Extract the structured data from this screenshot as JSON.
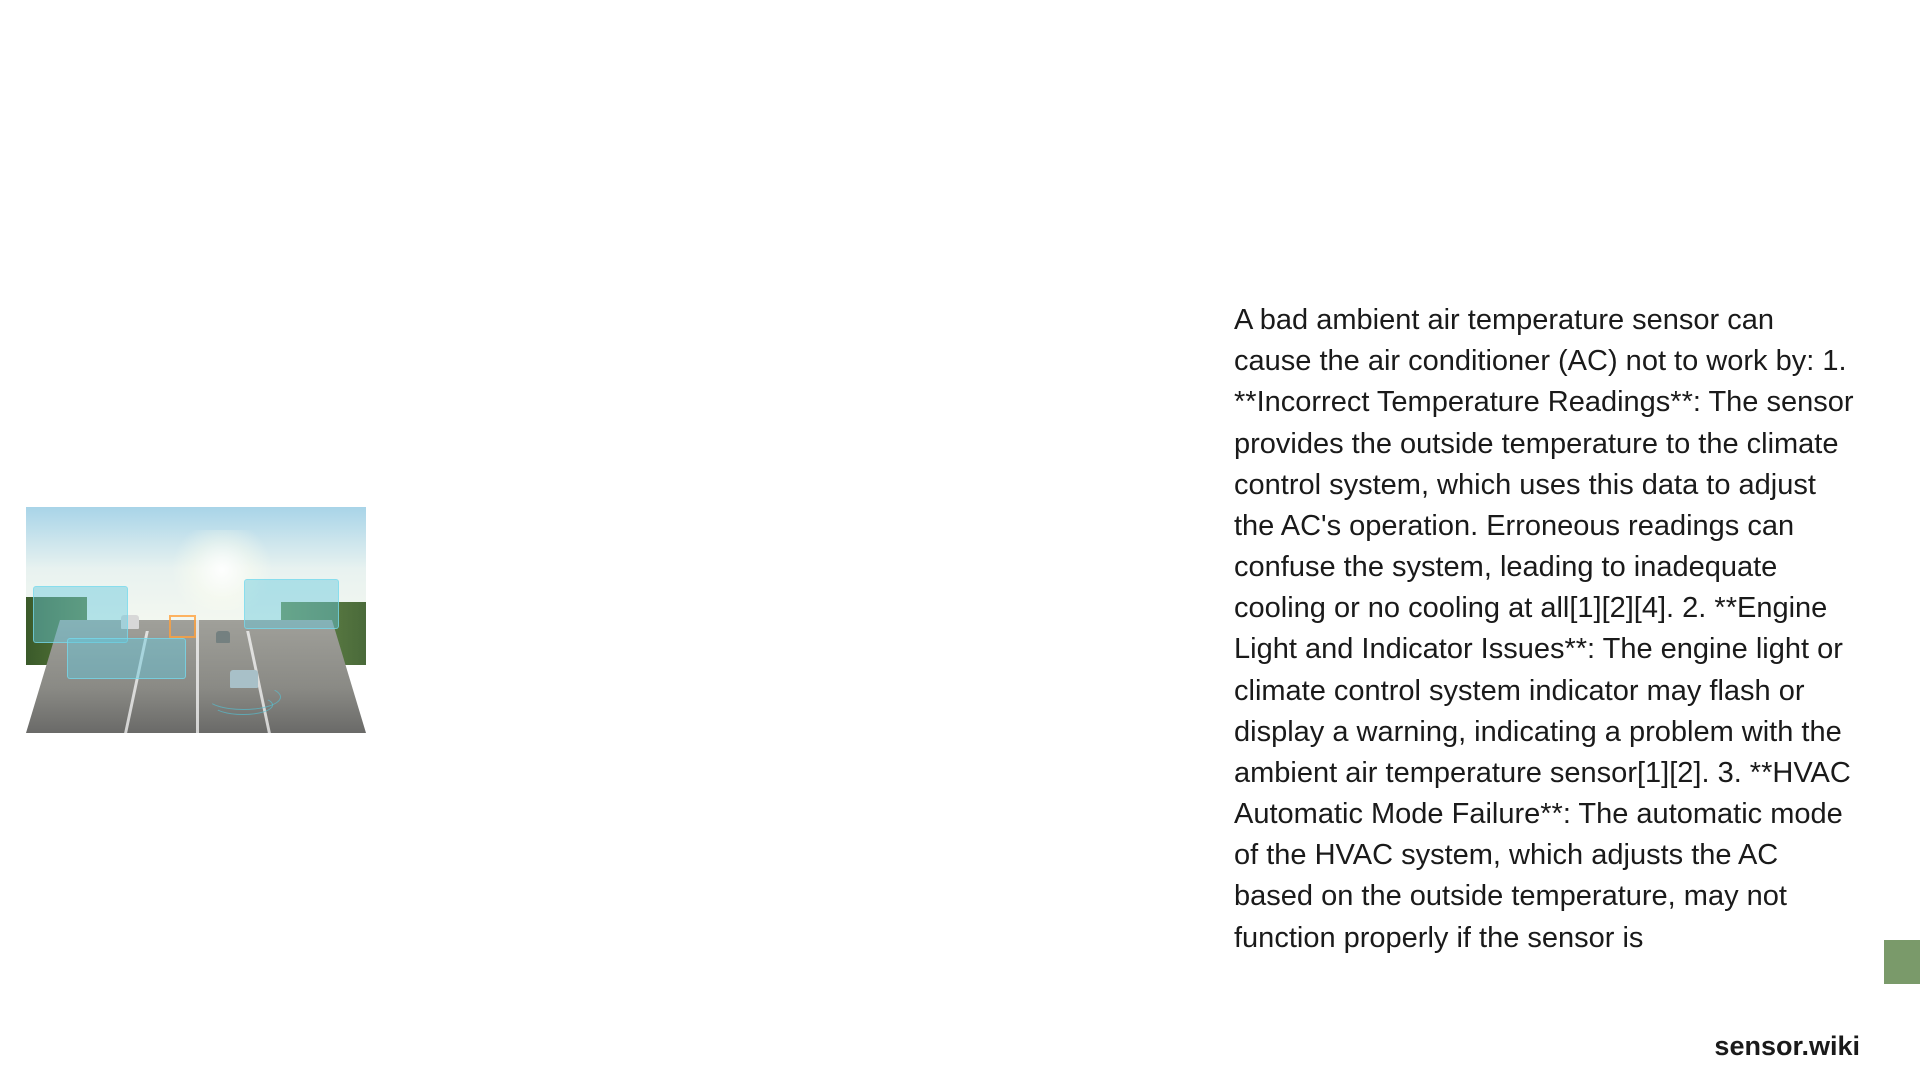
{
  "content": {
    "body_text": "A bad ambient air temperature sensor can cause the air conditioner (AC) not to work by:  1. **Incorrect Temperature Readings**: The sensor provides the outside temperature to the climate control system, which uses this data to adjust the AC's operation. Erroneous readings can confuse the system, leading to inadequate cooling or no cooling at all[1][2][4]. 2. **Engine Light and Indicator Issues**: The engine light or climate control system indicator may flash or display a warning, indicating a problem with the ambient air temperature sensor[1][2]. 3. **HVAC Automatic Mode Failure**: The automatic mode of the HVAC system, which adjusts the AC based on the outside temperature, may not function properly if the sensor is"
  },
  "watermark": "sensor.wiki",
  "colors": {
    "background": "#ffffff",
    "text": "#1a1a1a",
    "accent": "#7a9a6a"
  },
  "image": {
    "description": "Highway with autonomous vehicles and sensor data overlays"
  }
}
